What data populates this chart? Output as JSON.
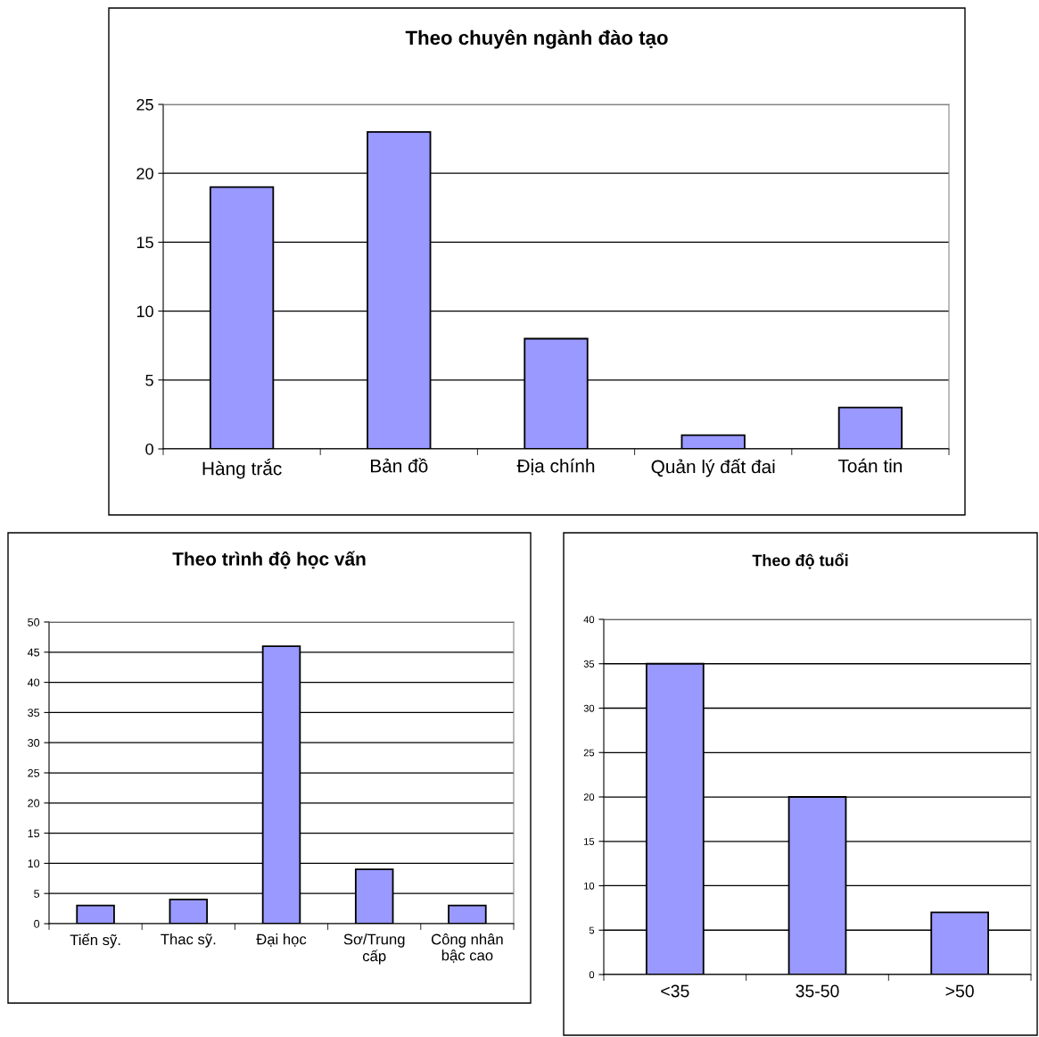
{
  "chart_data": [
    {
      "type": "bar",
      "title": "Theo chuyên ngành đào tạo",
      "categories": [
        "Hàng trắc",
        "Bản đồ",
        "Địa chính",
        "Quản lý đất đai",
        "Toán tin"
      ],
      "values": [
        19,
        23,
        8,
        1,
        3
      ],
      "color": "#9999ff",
      "ylim": [
        0,
        25
      ],
      "yticks": [
        0,
        5,
        10,
        15,
        20,
        25
      ],
      "grid": "y",
      "legend": false
    },
    {
      "type": "bar",
      "title": "Theo trình độ học vấn",
      "categories": [
        "Tiến sỹ.",
        "Thac sỹ.",
        "Đại học",
        "Sơ/Trung\ncấp",
        "Công nhân\nbậc cao"
      ],
      "values": [
        3,
        4,
        46,
        9,
        3
      ],
      "color": "#9999ff",
      "ylim": [
        0,
        50
      ],
      "yticks": [
        0,
        5,
        10,
        15,
        20,
        25,
        30,
        35,
        40,
        45,
        50
      ],
      "grid": "y",
      "legend": false
    },
    {
      "type": "bar",
      "title": "Theo độ tuổi",
      "categories": [
        "<35",
        "35-50",
        ">50"
      ],
      "values": [
        35,
        20,
        7
      ],
      "color": "#9999ff",
      "ylim": [
        0,
        40
      ],
      "yticks": [
        0,
        5,
        10,
        15,
        20,
        25,
        30,
        35,
        40
      ],
      "grid": "y",
      "legend": false
    }
  ]
}
